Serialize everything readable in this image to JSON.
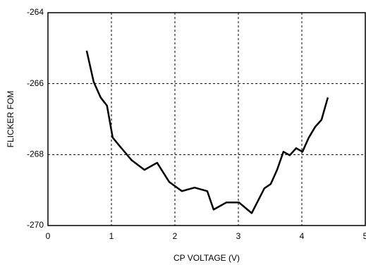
{
  "chart_data": {
    "type": "line",
    "x_label": "CP VOLTAGE (V)",
    "y_label": "FLICKER FOM",
    "x": [
      0.61,
      0.72,
      0.83,
      0.93,
      1.02,
      1.13,
      1.32,
      1.52,
      1.72,
      1.91,
      2.11,
      2.31,
      2.51,
      2.61,
      2.81,
      3.01,
      3.21,
      3.41,
      3.51,
      3.61,
      3.71,
      3.81,
      3.91,
      4.01,
      4.11,
      4.21,
      4.31,
      4.41
    ],
    "series": [
      {
        "color": "#000000",
        "values": [
          -265.07,
          -265.95,
          -266.39,
          -266.62,
          -267.52,
          -267.76,
          -268.16,
          -268.43,
          -268.23,
          -268.77,
          -269.03,
          -268.93,
          -269.03,
          -269.55,
          -269.35,
          -269.35,
          -269.65,
          -268.95,
          -268.83,
          -268.43,
          -267.92,
          -268.02,
          -267.82,
          -267.92,
          -267.52,
          -267.22,
          -267.02,
          -266.39
        ]
      }
    ],
    "xlim": [
      0,
      5
    ],
    "xticks": [
      0,
      1,
      2,
      3,
      4,
      5
    ],
    "ylim": [
      -270,
      -264
    ],
    "yticks": [
      -270,
      -268,
      -266,
      -264
    ],
    "grid": true
  }
}
